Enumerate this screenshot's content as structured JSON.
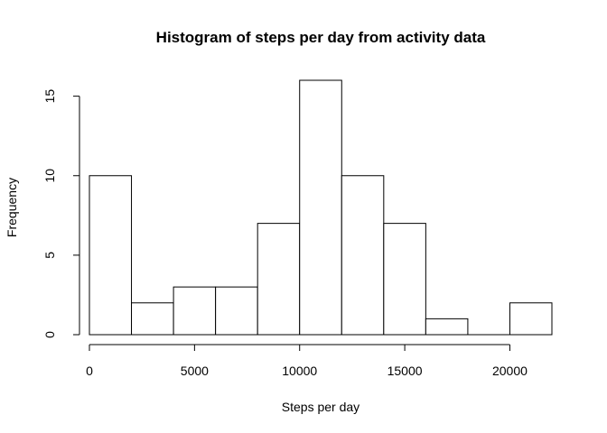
{
  "chart_data": {
    "type": "bar",
    "title": "Histogram of steps per day from activity data",
    "xlabel": "Steps per day",
    "ylabel": "Frequency",
    "bins": [
      {
        "start": 0,
        "end": 2000,
        "count": 10
      },
      {
        "start": 2000,
        "end": 4000,
        "count": 2
      },
      {
        "start": 4000,
        "end": 6000,
        "count": 3
      },
      {
        "start": 6000,
        "end": 8000,
        "count": 3
      },
      {
        "start": 8000,
        "end": 10000,
        "count": 7
      },
      {
        "start": 10000,
        "end": 12000,
        "count": 16
      },
      {
        "start": 12000,
        "end": 14000,
        "count": 10
      },
      {
        "start": 14000,
        "end": 16000,
        "count": 7
      },
      {
        "start": 16000,
        "end": 18000,
        "count": 1
      },
      {
        "start": 18000,
        "end": 20000,
        "count": 0
      },
      {
        "start": 20000,
        "end": 22000,
        "count": 2
      }
    ],
    "xticks": [
      "0",
      "5000",
      "10000",
      "15000",
      "20000"
    ],
    "yticks": [
      "0",
      "5",
      "10",
      "15"
    ],
    "xlim": [
      0,
      22000
    ],
    "ylim": [
      0,
      16
    ],
    "grid": false,
    "legend": "none"
  }
}
